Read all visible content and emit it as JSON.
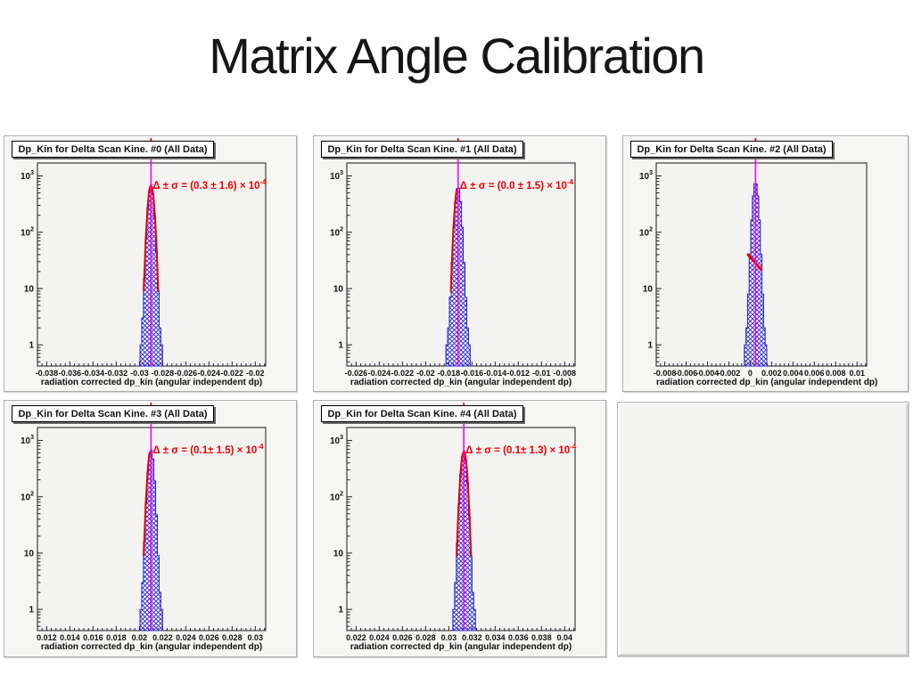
{
  "slide_title": "Matrix Angle Calibration",
  "colors": {
    "histogram_line": "#2222cc",
    "histogram_hatch": "#2a2ad0",
    "fit_curve": "#ee0000",
    "peak_marker_line": "#ff00ff",
    "annotation_text": "#ee0000",
    "frame_background": "#f3f3f1",
    "pad_background": "#f6f6f4",
    "axis_ticks": "#222244"
  },
  "axis": {
    "y_tick_values": [
      1000,
      100,
      10,
      1
    ],
    "y_tick_labels": [
      {
        "base": "10",
        "exp": "3"
      },
      {
        "base": "10",
        "exp": "2"
      },
      {
        "base": "10",
        "exp": ""
      },
      {
        "base": "1",
        "exp": ""
      }
    ]
  },
  "chart_data": [
    {
      "type": "bar",
      "title": "Dp_Kin for Delta Scan Kine. #0 (All Data)",
      "xlabel": "radiation corrected dp_kin (angular independent dp)",
      "ylabel": "",
      "yscale": "log",
      "ylim": [
        0.42,
        1700
      ],
      "xlim": [
        -0.0388,
        -0.0191
      ],
      "x_tick_values": [
        -0.038,
        -0.036,
        -0.034,
        -0.032,
        -0.03,
        -0.028,
        -0.026,
        -0.024,
        -0.022,
        -0.02
      ],
      "x_tick_labels": [
        "-0.038",
        "-0.036",
        "-0.034",
        "-0.032",
        "-0.03",
        "-0.028",
        "-0.026",
        "-0.024",
        "-0.022",
        "-0.02"
      ],
      "peak": {
        "center": -0.029,
        "sigma": 0.0002,
        "amplitude": 650,
        "tail_amplitude": 20,
        "tail_sigma": 0.00034
      },
      "fit": {
        "style": "curve",
        "delta": 0.3,
        "sigma": 1.6,
        "scale_exponent": -4
      },
      "fit_label_main": "Δ ± σ = (0.3 ± 1.6) × 10",
      "fit_label_exp": "-4"
    },
    {
      "type": "bar",
      "title": "Dp_Kin for Delta Scan Kine. #1 (All Data)",
      "xlabel": "radiation corrected dp_kin (angular independent dp)",
      "ylabel": "",
      "yscale": "log",
      "ylim": [
        0.42,
        1700
      ],
      "xlim": [
        -0.0268,
        -0.0071
      ],
      "x_tick_values": [
        -0.026,
        -0.024,
        -0.022,
        -0.02,
        -0.018,
        -0.016,
        -0.014,
        -0.012,
        -0.01,
        -0.008
      ],
      "x_tick_labels": [
        "-0.026",
        "-0.024",
        "-0.022",
        "-0.02",
        "-0.018",
        "-0.016",
        "-0.014",
        "-0.012",
        "-0.01",
        "-0.008"
      ],
      "peak": {
        "center": -0.0172,
        "sigma": 0.0002,
        "amplitude": 620,
        "tail_amplitude": 26,
        "tail_sigma": 0.00036
      },
      "fit": {
        "style": "curve",
        "delta": 0.0,
        "sigma": 1.5,
        "scale_exponent": -4
      },
      "fit_label_main": "Δ ± σ = (0.0 ± 1.5) × 10",
      "fit_label_exp": "-4"
    },
    {
      "type": "bar",
      "title": "Dp_Kin for Delta Scan Kine. #2 (All Data)",
      "xlabel": "radiation corrected dp_kin (angular independent dp)",
      "ylabel": "",
      "yscale": "log",
      "ylim": [
        0.42,
        1700
      ],
      "xlim": [
        -0.0088,
        0.0109
      ],
      "x_tick_values": [
        -0.008,
        -0.006,
        -0.004,
        -0.002,
        0,
        0.002,
        0.004,
        0.006,
        0.008,
        0.01
      ],
      "x_tick_labels": [
        "-0.008",
        "-0.006",
        "-0.004",
        "-0.002",
        "0",
        "0.002",
        "0.004",
        "0.006",
        "0.008",
        "0.01"
      ],
      "peak": {
        "center": 0.0005,
        "sigma": 0.00021,
        "amplitude": 750,
        "tail_amplitude": 24,
        "tail_sigma": 0.00036
      },
      "fit": {
        "style": "segment",
        "segment": [
          [
            -0.0002,
            40
          ],
          [
            0.001,
            22
          ]
        ]
      }
    },
    {
      "type": "bar",
      "title": "Dp_Kin for Delta Scan Kine. #3 (All Data)",
      "xlabel": "radiation corrected dp_kin (angular independent dp)",
      "ylabel": "",
      "yscale": "log",
      "ylim": [
        0.42,
        1700
      ],
      "xlim": [
        0.0112,
        0.0309
      ],
      "x_tick_values": [
        0.012,
        0.014,
        0.016,
        0.018,
        0.02,
        0.022,
        0.024,
        0.026,
        0.028,
        0.03
      ],
      "x_tick_labels": [
        "0.012",
        "0.014",
        "0.016",
        "0.018",
        "0.02",
        "0.022",
        "0.024",
        "0.026",
        "0.028",
        "0.03"
      ],
      "peak": {
        "center": 0.021,
        "sigma": 0.0002,
        "amplitude": 660,
        "tail_amplitude": 22,
        "tail_sigma": 0.00035
      },
      "fit": {
        "style": "curve",
        "delta": 0.1,
        "sigma": 1.5,
        "scale_exponent": -4
      },
      "fit_label_main": "Δ ± σ = (0.1± 1.5) × 10",
      "fit_label_exp": "-4"
    },
    {
      "type": "bar",
      "title": "Dp_Kin for Delta Scan Kine. #4 (All Data)",
      "xlabel": "radiation corrected dp_kin (angular independent dp)",
      "ylabel": "",
      "yscale": "log",
      "ylim": [
        0.42,
        1700
      ],
      "xlim": [
        0.0212,
        0.0409
      ],
      "x_tick_values": [
        0.022,
        0.024,
        0.026,
        0.028,
        0.03,
        0.032,
        0.034,
        0.036,
        0.038,
        0.04
      ],
      "x_tick_labels": [
        "0.022",
        "0.024",
        "0.026",
        "0.028",
        "0.03",
        "0.032",
        "0.034",
        "0.036",
        "0.038",
        "0.04"
      ],
      "peak": {
        "center": 0.0313,
        "sigma": 0.0002,
        "amplitude": 610,
        "tail_amplitude": 20,
        "tail_sigma": 0.00036
      },
      "fit": {
        "style": "curve",
        "delta": 0.1,
        "sigma": 1.3,
        "scale_exponent": -4
      },
      "fit_label_main": "Δ ± σ = (0.1± 1.3) × 10",
      "fit_label_exp": "-4"
    }
  ]
}
